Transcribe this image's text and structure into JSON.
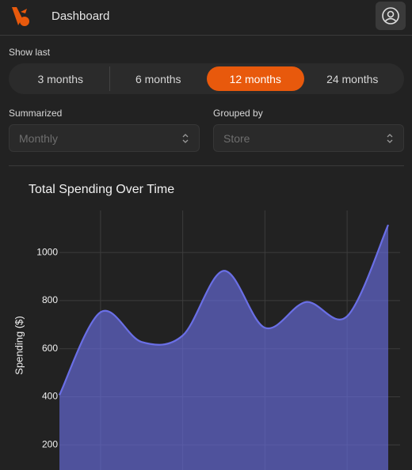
{
  "header": {
    "title": "Dashboard"
  },
  "filters": {
    "show_last": {
      "label": "Show last",
      "options": [
        "3 months",
        "6 months",
        "12 months",
        "24 months"
      ],
      "selected": 2
    },
    "summarized": {
      "label": "Summarized",
      "value": "Monthly"
    },
    "grouped_by": {
      "label": "Grouped by",
      "value": "Store"
    }
  },
  "chart_data": {
    "type": "area",
    "title": "Total Spending Over Time",
    "y_label": "Spending ($)",
    "categories": [
      null,
      null,
      null,
      null,
      null,
      null,
      null,
      null,
      null
    ],
    "values": [
      407,
      752,
      628,
      655,
      924,
      687,
      794,
      735,
      1115
    ],
    "color": "#6a6fe6",
    "ylim": [
      0,
      1175
    ],
    "yticks": [
      200,
      400,
      600,
      800,
      1000
    ],
    "grid": true
  }
}
